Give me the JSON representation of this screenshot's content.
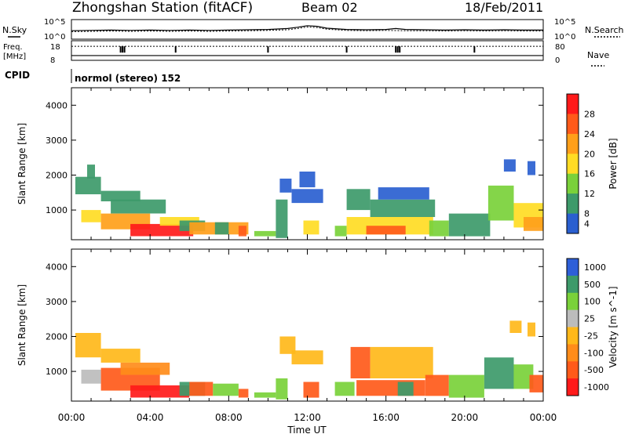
{
  "header": {
    "station": "Zhongshan Station (fitACF)",
    "beam": "Beam 02",
    "date": "18/Feb/2011"
  },
  "noise_panel": {
    "left_label": "N.Sky",
    "right_label": "N.Search",
    "left_ticks": [
      "10^5",
      "10^0"
    ],
    "right_ticks": [
      "10^5",
      "10^0"
    ],
    "sky_trace": [
      [
        0,
        2.2
      ],
      [
        1,
        2.3
      ],
      [
        2,
        2.4
      ],
      [
        3,
        2.3
      ],
      [
        4,
        2.4
      ],
      [
        5,
        2.3
      ],
      [
        6,
        2.4
      ],
      [
        7,
        2.3
      ],
      [
        8,
        2.4
      ],
      [
        9,
        2.5
      ],
      [
        10,
        2.6
      ],
      [
        11,
        2.9
      ],
      [
        11.5,
        3.3
      ],
      [
        12,
        3.8
      ],
      [
        12.5,
        3.6
      ],
      [
        13,
        3.0
      ],
      [
        14,
        2.6
      ],
      [
        15,
        2.5
      ],
      [
        16,
        2.6
      ],
      [
        16.5,
        2.9
      ],
      [
        17,
        2.6
      ],
      [
        18,
        2.5
      ],
      [
        19,
        2.4
      ],
      [
        20,
        2.5
      ],
      [
        21,
        2.4
      ],
      [
        22,
        2.5
      ],
      [
        23,
        2.4
      ],
      [
        24,
        2.4
      ]
    ],
    "search_trace": [
      [
        0,
        1.9
      ],
      [
        1,
        2.0
      ],
      [
        2,
        2.1
      ],
      [
        3,
        2.0
      ],
      [
        4,
        2.1
      ],
      [
        5,
        2.0
      ],
      [
        6,
        2.1
      ],
      [
        7,
        2.0
      ],
      [
        8,
        2.1
      ],
      [
        9,
        2.2
      ],
      [
        10,
        2.3
      ],
      [
        11,
        2.5
      ],
      [
        11.5,
        2.9
      ],
      [
        12,
        3.4
      ],
      [
        12.5,
        3.2
      ],
      [
        13,
        2.7
      ],
      [
        14,
        2.3
      ],
      [
        15,
        2.2
      ],
      [
        16,
        2.3
      ],
      [
        17,
        2.2
      ],
      [
        18,
        2.2
      ],
      [
        19,
        2.1
      ],
      [
        20,
        2.2
      ],
      [
        21,
        2.1
      ],
      [
        22,
        2.2
      ],
      [
        23,
        2.1
      ],
      [
        24,
        2.1
      ]
    ]
  },
  "freq_panel": {
    "left_label_1": "Freq.",
    "left_label_2": "[MHz]",
    "right_label": "Nave",
    "left_ticks": [
      "18",
      "8"
    ],
    "right_ticks": [
      "80",
      "0"
    ],
    "cpid_label": "CPID",
    "freq_value": 9.8,
    "nave_value": 70,
    "nave_dips": [
      2.5,
      2.6,
      2.7,
      5.3,
      10.0,
      14.0,
      16.5,
      16.6,
      16.7,
      20.5
    ]
  },
  "cpid_text": "normol (stereo) 152",
  "chart_data": [
    {
      "type": "heatmap",
      "title": "",
      "xlabel": "",
      "ylabel": "Slant Range [km]",
      "xlim": [
        0,
        24
      ],
      "ylim": [
        150,
        4500
      ],
      "yticks": [
        1000,
        2000,
        3000,
        4000
      ],
      "colorbar_label": "Power [dB]",
      "colorbar": [
        {
          "value": 28,
          "color": "#ff1a1a"
        },
        {
          "value": 24,
          "color": "#ff5a1a"
        },
        {
          "value": 20,
          "color": "#ff9f1a"
        },
        {
          "value": 16,
          "color": "#ffdc24"
        },
        {
          "value": 12,
          "color": "#7ad13a"
        },
        {
          "value": 8,
          "color": "#3d9a6a"
        },
        {
          "value": 4,
          "color": "#2a5fd0"
        }
      ],
      "cells": [
        {
          "x0": 0.2,
          "x1": 1.5,
          "y0": 1450,
          "y1": 1950,
          "value": 10
        },
        {
          "x0": 0.8,
          "x1": 1.2,
          "y0": 1900,
          "y1": 2300,
          "value": 8
        },
        {
          "x0": 1.5,
          "x1": 3.5,
          "y0": 1250,
          "y1": 1550,
          "value": 8
        },
        {
          "x0": 0.5,
          "x1": 1.5,
          "y0": 650,
          "y1": 1000,
          "value": 18
        },
        {
          "x0": 1.5,
          "x1": 4.0,
          "y0": 450,
          "y1": 900,
          "value": 22
        },
        {
          "x0": 2.0,
          "x1": 4.8,
          "y0": 900,
          "y1": 1300,
          "value": 11
        },
        {
          "x0": 3.0,
          "x1": 6.2,
          "y0": 250,
          "y1": 600,
          "value": 28
        },
        {
          "x0": 4.5,
          "x1": 6.5,
          "y0": 550,
          "y1": 800,
          "value": 18
        },
        {
          "x0": 5.5,
          "x1": 6.8,
          "y0": 400,
          "y1": 700,
          "value": 8
        },
        {
          "x0": 6.0,
          "x1": 9.0,
          "y0": 300,
          "y1": 650,
          "value": 20
        },
        {
          "x0": 7.3,
          "x1": 8.0,
          "y0": 300,
          "y1": 650,
          "value": 8
        },
        {
          "x0": 8.5,
          "x1": 8.9,
          "y0": 250,
          "y1": 550,
          "value": 26
        },
        {
          "x0": 9.3,
          "x1": 10.4,
          "y0": 250,
          "y1": 400,
          "value": 12
        },
        {
          "x0": 10.4,
          "x1": 11.0,
          "y0": 200,
          "y1": 1300,
          "value": 8
        },
        {
          "x0": 10.6,
          "x1": 11.2,
          "y0": 1500,
          "y1": 1900,
          "value": 6
        },
        {
          "x0": 11.8,
          "x1": 12.6,
          "y0": 300,
          "y1": 700,
          "value": 16
        },
        {
          "x0": 11.2,
          "x1": 12.8,
          "y0": 1200,
          "y1": 1600,
          "value": 6
        },
        {
          "x0": 11.6,
          "x1": 12.4,
          "y0": 1650,
          "y1": 2100,
          "value": 5
        },
        {
          "x0": 13.4,
          "x1": 14.0,
          "y0": 250,
          "y1": 550,
          "value": 13
        },
        {
          "x0": 14.0,
          "x1": 15.2,
          "y0": 1000,
          "y1": 1600,
          "value": 9
        },
        {
          "x0": 14.0,
          "x1": 18.4,
          "y0": 300,
          "y1": 800,
          "value": 16
        },
        {
          "x0": 15.0,
          "x1": 17.0,
          "y0": 300,
          "y1": 550,
          "value": 26
        },
        {
          "x0": 15.2,
          "x1": 18.5,
          "y0": 800,
          "y1": 1300,
          "value": 9
        },
        {
          "x0": 15.6,
          "x1": 18.2,
          "y0": 1300,
          "y1": 1650,
          "value": 6
        },
        {
          "x0": 18.2,
          "x1": 19.2,
          "y0": 250,
          "y1": 700,
          "value": 12
        },
        {
          "x0": 19.2,
          "x1": 21.3,
          "y0": 250,
          "y1": 900,
          "value": 10
        },
        {
          "x0": 21.2,
          "x1": 22.5,
          "y0": 700,
          "y1": 1700,
          "value": 12
        },
        {
          "x0": 22.0,
          "x1": 22.6,
          "y0": 2100,
          "y1": 2450,
          "value": 7
        },
        {
          "x0": 23.2,
          "x1": 23.6,
          "y0": 2000,
          "y1": 2400,
          "value": 7
        },
        {
          "x0": 22.5,
          "x1": 24.0,
          "y0": 500,
          "y1": 1200,
          "value": 16
        },
        {
          "x0": 23.0,
          "x1": 24.0,
          "y0": 400,
          "y1": 800,
          "value": 22
        }
      ]
    },
    {
      "type": "heatmap",
      "title": "",
      "xlabel": "Time UT",
      "ylabel": "Slant Range [km]",
      "xlim": [
        0,
        24
      ],
      "ylim": [
        150,
        4500
      ],
      "yticks": [
        1000,
        2000,
        3000,
        4000
      ],
      "xticks": [
        "00:00",
        "04:00",
        "08:00",
        "12:00",
        "16:00",
        "20:00",
        "00:00"
      ],
      "colorbar_label": "Velocity [m s^-1]",
      "colorbar": [
        {
          "value": 1000,
          "color": "#2e5fd8"
        },
        {
          "value": 500,
          "color": "#3d9a6a"
        },
        {
          "value": 100,
          "color": "#7ad13a"
        },
        {
          "value": 25,
          "color": "#bcbcbc"
        },
        {
          "value": -25,
          "color": "#ffb81a"
        },
        {
          "value": -100,
          "color": "#ff8c1a"
        },
        {
          "value": -500,
          "color": "#ff5a1a"
        },
        {
          "value": -1000,
          "color": "#ff1a1a"
        }
      ],
      "cells": [
        {
          "x0": 0.2,
          "x1": 1.5,
          "y0": 1400,
          "y1": 2100,
          "value": 0
        },
        {
          "x0": 1.5,
          "x1": 3.5,
          "y0": 1250,
          "y1": 1650,
          "value": 0
        },
        {
          "x0": 0.5,
          "x1": 1.5,
          "y0": 650,
          "y1": 1050,
          "value": 80
        },
        {
          "x0": 1.5,
          "x1": 4.5,
          "y0": 450,
          "y1": 1100,
          "value": -150
        },
        {
          "x0": 2.5,
          "x1": 5.0,
          "y0": 900,
          "y1": 1250,
          "value": -60
        },
        {
          "x0": 3.0,
          "x1": 6.0,
          "y0": 250,
          "y1": 600,
          "value": -600
        },
        {
          "x0": 5.5,
          "x1": 6.8,
          "y0": 300,
          "y1": 700,
          "value": 700
        },
        {
          "x0": 6.0,
          "x1": 7.2,
          "y0": 300,
          "y1": 700,
          "value": -200
        },
        {
          "x0": 7.2,
          "x1": 8.5,
          "y0": 300,
          "y1": 650,
          "value": 300
        },
        {
          "x0": 8.5,
          "x1": 9.0,
          "y0": 250,
          "y1": 500,
          "value": -200
        },
        {
          "x0": 9.3,
          "x1": 10.4,
          "y0": 250,
          "y1": 400,
          "value": 200
        },
        {
          "x0": 10.4,
          "x1": 11.0,
          "y0": 200,
          "y1": 800,
          "value": 300
        },
        {
          "x0": 10.6,
          "x1": 11.4,
          "y0": 1500,
          "y1": 2000,
          "value": 0
        },
        {
          "x0": 11.2,
          "x1": 12.8,
          "y0": 1200,
          "y1": 1600,
          "value": 0
        },
        {
          "x0": 11.8,
          "x1": 12.6,
          "y0": 250,
          "y1": 700,
          "value": -200
        },
        {
          "x0": 13.4,
          "x1": 14.4,
          "y0": 300,
          "y1": 700,
          "value": 400
        },
        {
          "x0": 14.2,
          "x1": 15.2,
          "y0": 800,
          "y1": 1700,
          "value": -300
        },
        {
          "x0": 15.2,
          "x1": 18.4,
          "y0": 800,
          "y1": 1700,
          "value": 0
        },
        {
          "x0": 14.5,
          "x1": 18.0,
          "y0": 300,
          "y1": 750,
          "value": -150
        },
        {
          "x0": 16.6,
          "x1": 17.4,
          "y0": 300,
          "y1": 700,
          "value": 700
        },
        {
          "x0": 18.0,
          "x1": 19.2,
          "y0": 300,
          "y1": 900,
          "value": -200
        },
        {
          "x0": 19.2,
          "x1": 21.0,
          "y0": 250,
          "y1": 900,
          "value": 200
        },
        {
          "x0": 21.0,
          "x1": 22.5,
          "y0": 500,
          "y1": 1400,
          "value": 600
        },
        {
          "x0": 22.3,
          "x1": 22.9,
          "y0": 2100,
          "y1": 2450,
          "value": 0
        },
        {
          "x0": 23.2,
          "x1": 23.6,
          "y0": 2000,
          "y1": 2400,
          "value": 0
        },
        {
          "x0": 22.5,
          "x1": 23.5,
          "y0": 500,
          "y1": 1200,
          "value": 300
        },
        {
          "x0": 23.3,
          "x1": 24.0,
          "y0": 400,
          "y1": 900,
          "value": -300
        }
      ]
    }
  ]
}
